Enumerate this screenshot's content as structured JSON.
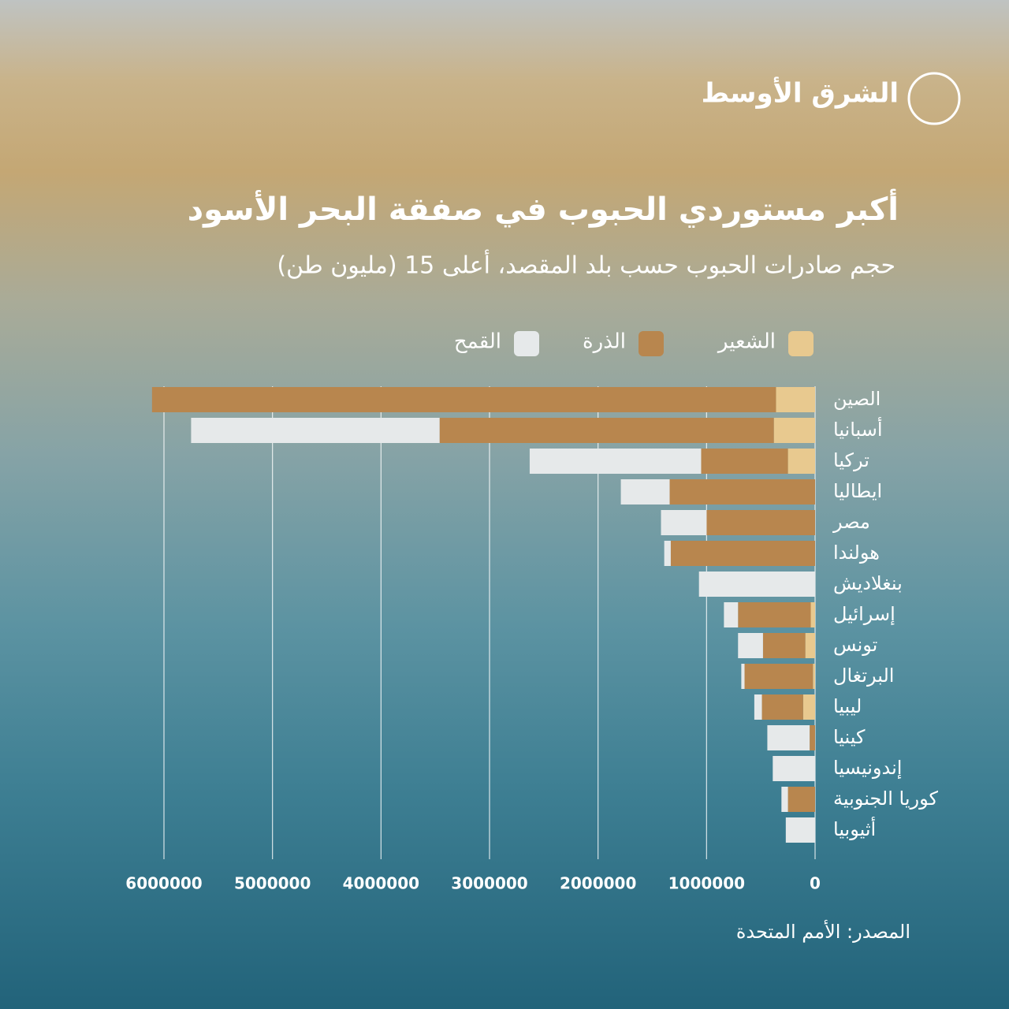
{
  "logo": "الشرق الأوسط",
  "chart_data": {
    "type": "hbar_stacked",
    "title": "أكبر مستوردي الحبوب في صفقة البحر الأسود",
    "subtitle": "حجم صادرات الحبوب حسب بلد المقصد، أعلى 15 (مليون طن)",
    "source": "المصدر: الأمم المتحدة",
    "categories": [
      "الصين",
      "أسبانيا",
      "تركيا",
      "ايطاليا",
      "مصر",
      "هولندا",
      "بنغلاديش",
      "إسرائيل",
      "تونس",
      "البرتغال",
      "ليبيا",
      "كينيا",
      "إندونيسيا",
      "كوريا الجنوبية",
      "أثيوبيا"
    ],
    "series": [
      {
        "name": "الشعير",
        "color": "#e8c98f",
        "values": [
          360000,
          380000,
          250000,
          0,
          0,
          0,
          0,
          40000,
          90000,
          20000,
          110000,
          0,
          0,
          0,
          0
        ]
      },
      {
        "name": "الذرة",
        "color": "#b8864e",
        "values": [
          5750000,
          3080000,
          800000,
          1340000,
          1000000,
          1330000,
          0,
          670000,
          390000,
          630000,
          380000,
          50000,
          0,
          250000,
          0
        ]
      },
      {
        "name": "القمح",
        "color": "#e6e9ea",
        "values": [
          0,
          2290000,
          1580000,
          450000,
          420000,
          60000,
          1070000,
          130000,
          230000,
          30000,
          70000,
          390000,
          390000,
          60000,
          270000
        ]
      }
    ],
    "xlim": [
      0,
      6000000
    ],
    "xticks": [
      0,
      1000000,
      2000000,
      3000000,
      4000000,
      5000000,
      6000000
    ],
    "grid": true
  }
}
